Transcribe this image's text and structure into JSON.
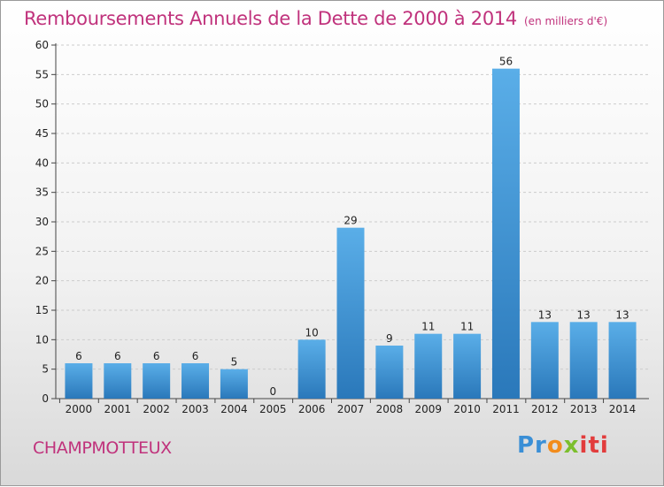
{
  "title": "Remboursements Annuels de la Dette de 2000 à 2014",
  "title_unit": "(en milliers d'€)",
  "commune": "CHAMPMOTTEUX",
  "logo": {
    "p1": "Pr",
    "p2": "o",
    "p3": "x",
    "p4": "iti"
  },
  "colors": {
    "title": "#c0327c",
    "bar_top": "#5aaee8",
    "bar_bottom": "#2a78ba",
    "grid": "#cccccc"
  },
  "chart_data": {
    "type": "bar",
    "categories": [
      "2000",
      "2001",
      "2002",
      "2003",
      "2004",
      "2005",
      "2006",
      "2007",
      "2008",
      "2009",
      "2010",
      "2011",
      "2012",
      "2013",
      "2014"
    ],
    "values": [
      6,
      6,
      6,
      6,
      5,
      0,
      10,
      29,
      9,
      11,
      11,
      56,
      13,
      13,
      13
    ],
    "ylim": [
      0,
      60
    ],
    "yticks": [
      0,
      5,
      10,
      15,
      20,
      25,
      30,
      35,
      40,
      45,
      50,
      55,
      60
    ],
    "grid": "horizontal dashed",
    "data_labels": true
  }
}
